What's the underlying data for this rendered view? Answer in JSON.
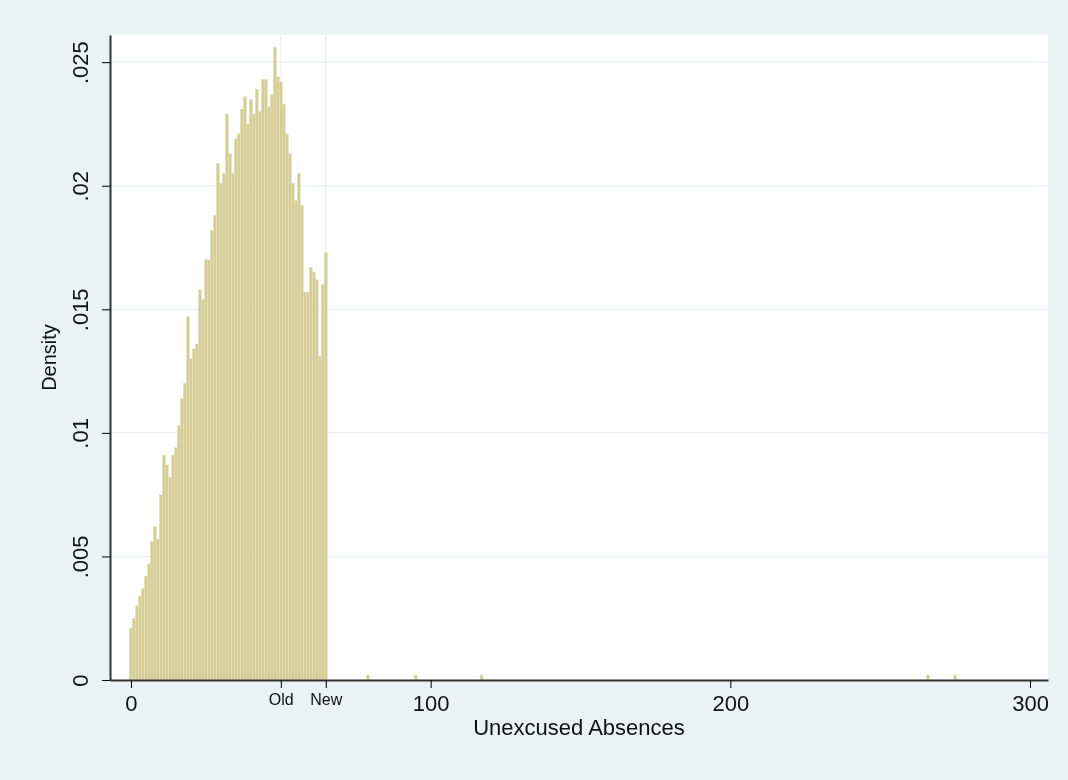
{
  "chart_data": {
    "type": "histogram",
    "xlabel": "Unexcused Absences",
    "ylabel": "Density",
    "bins": [
      -0.5,
      0.5,
      1.5,
      2.5,
      3.5,
      4.5,
      5.5,
      6.5,
      7.5,
      8.5,
      9.5,
      10.5,
      11.5,
      12.5,
      13.5,
      14.5,
      15.5,
      16.5,
      17.5,
      18.5,
      19.5,
      20.5,
      21.5,
      22.5,
      23.5,
      24.5,
      25.5,
      26.5,
      27.5,
      28.5,
      29.5,
      30.5,
      31.5,
      32.5,
      33.5,
      34.5,
      35.5,
      36.5,
      37.5,
      38.5,
      39.5,
      40.5,
      41.5,
      42.5,
      43.5,
      44.5,
      45.5,
      46.5,
      47.5,
      48.5,
      49.5,
      50.5,
      51.5,
      52.5,
      53.5,
      54.5,
      55.5,
      56.5,
      57.5,
      58.5,
      59.5,
      60.5,
      61.5,
      62.5,
      63.5,
      64.5,
      65.5,
      78.5,
      79.5,
      94.5,
      95.5,
      116.5,
      117.5,
      265.5,
      266.5,
      274.5,
      275.5
    ],
    "values": [
      0.0021,
      0.0025,
      0.003,
      0.0034,
      0.0037,
      0.0042,
      0.0047,
      0.0056,
      0.0062,
      0.0057,
      0.0075,
      0.0091,
      0.0087,
      0.0082,
      0.0091,
      0.0094,
      0.0103,
      0.0114,
      0.012,
      0.0147,
      0.013,
      0.0134,
      0.0136,
      0.0158,
      0.0154,
      0.017,
      0.017,
      0.0182,
      0.0188,
      0.0209,
      0.0201,
      0.0205,
      0.0229,
      0.0213,
      0.0205,
      0.0219,
      0.0221,
      0.0231,
      0.0236,
      0.0225,
      0.0235,
      0.0229,
      0.0239,
      0.023,
      0.0243,
      0.0243,
      0.0232,
      0.0237,
      0.0256,
      0.0244,
      0.0242,
      0.0233,
      0.0221,
      0.0213,
      0.0201,
      0.0194,
      0.0205,
      0.0192,
      0.0157,
      0.0157,
      0.0167,
      0.0165,
      0.0162,
      0.0131,
      0.016,
      0.0173,
      0,
      0.0002,
      0,
      0.0002,
      0,
      0.0002,
      0,
      0.0002,
      0,
      0.0002
    ],
    "color": "#d4cd98",
    "xlim": [
      -7,
      306
    ],
    "xticks": [
      0,
      {
        "value": 50,
        "label": "Old"
      },
      {
        "value": 65,
        "label": "New"
      },
      100,
      200,
      300
    ],
    "ylim": [
      0,
      0.0261
    ],
    "yticks": [
      0,
      {
        "value": 0.005,
        "label": ".005"
      },
      {
        "value": 0.01,
        "label": ".01"
      },
      {
        "value": 0.015,
        "label": ".015"
      },
      {
        "value": 0.02,
        "label": ".02"
      },
      {
        "value": 0.025,
        "label": ".025"
      }
    ],
    "grid": "y",
    "ref_lines": [
      {
        "axis": "x",
        "value": 50,
        "color": "#e6eaec"
      },
      {
        "axis": "x",
        "value": 65,
        "color": "#e6eaec"
      }
    ]
  }
}
